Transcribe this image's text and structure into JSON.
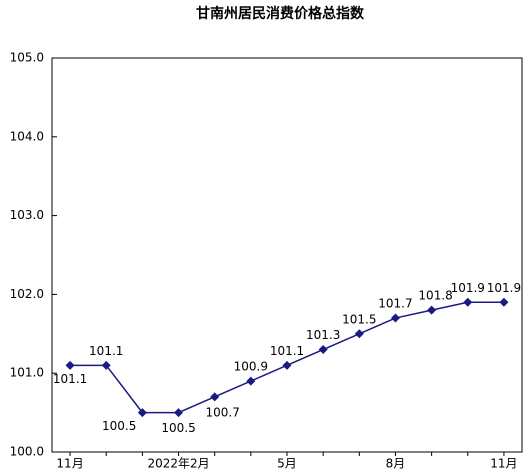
{
  "chart_data": {
    "type": "line",
    "title": "甘南州居民消费价格总指数",
    "categories": [
      "11月",
      null,
      null,
      "2022年2月",
      null,
      null,
      "5月",
      null,
      null,
      "8月",
      null,
      null,
      "11月"
    ],
    "series": [
      {
        "name": "甘南州居民消费价格总指数",
        "color": "#1a1a80",
        "values": [
          101.1,
          101.1,
          100.5,
          100.5,
          100.7,
          100.9,
          101.1,
          101.3,
          101.5,
          101.7,
          101.8,
          101.9,
          101.9
        ]
      }
    ],
    "ylim": [
      100,
      105
    ],
    "yticks": [
      {
        "value": 100,
        "label": "100.0"
      },
      {
        "value": 101,
        "label": "101.0"
      },
      {
        "value": 102,
        "label": "102.0"
      },
      {
        "value": 103,
        "label": "103.0"
      },
      {
        "value": 104,
        "label": "104.0"
      },
      {
        "value": 105,
        "label": "105.0"
      }
    ],
    "grid": false
  }
}
